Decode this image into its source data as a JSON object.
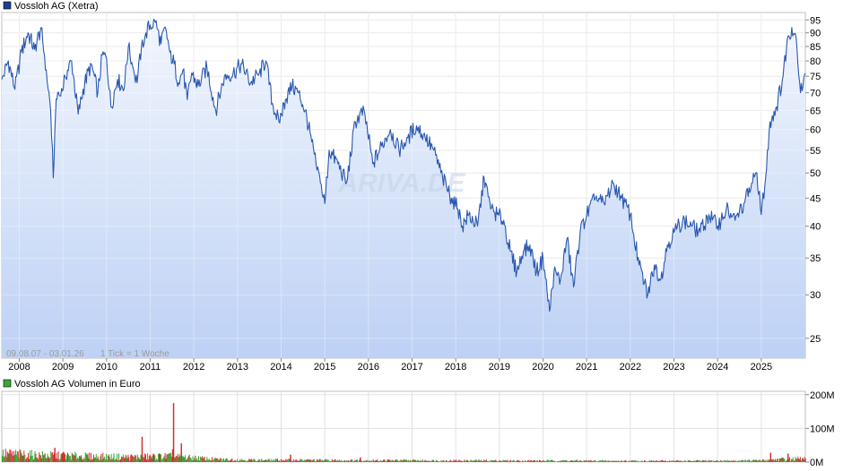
{
  "chart_data": [
    {
      "type": "area",
      "title": "Vossloh AG (Xetra)",
      "legend_color": "#1f3f8f",
      "line_color": "#2a58b0",
      "fill_top_color": "#f2f6fd",
      "fill_bottom_color": "#bdd1f5",
      "period_label": "09.08.07 - 03.01.26",
      "tick_label": "1 Tick = 1 Woche",
      "y_scale": "log",
      "ylim": [
        23,
        98
      ],
      "xlim": [
        2007.6,
        2026.01
      ],
      "grid": true,
      "x_ticks": [
        2008,
        2009,
        2010,
        2011,
        2012,
        2013,
        2014,
        2015,
        2016,
        2017,
        2018,
        2019,
        2020,
        2021,
        2022,
        2023,
        2024,
        2025
      ],
      "x_tick_labels": [
        "2008",
        "2009",
        "2010",
        "2011",
        "2012",
        "2013",
        "2014",
        "2015",
        "2016",
        "2017",
        "2018",
        "2019",
        "2020",
        "2021",
        "2022",
        "2023",
        "2024",
        "2025"
      ],
      "y_ticks": [
        25,
        30,
        35,
        40,
        45,
        50,
        55,
        60,
        65,
        70,
        75,
        80,
        85,
        90,
        95
      ],
      "y_tick_labels": [
        "25",
        "30",
        "35",
        "40",
        "45",
        "50",
        "55",
        "60",
        "65",
        "70",
        "75",
        "80",
        "85",
        "90",
        "95"
      ],
      "series": [
        {
          "name": "Vossloh AG (Xetra)",
          "x": [
            2007.6,
            2007.75,
            2007.9,
            2008.05,
            2008.2,
            2008.35,
            2008.5,
            2008.62,
            2008.72,
            2008.78,
            2008.83,
            2008.88,
            2008.95,
            2009.05,
            2009.2,
            2009.35,
            2009.5,
            2009.65,
            2009.8,
            2009.9,
            2010.0,
            2010.1,
            2010.25,
            2010.4,
            2010.5,
            2010.6,
            2010.7,
            2010.8,
            2010.9,
            2011.0,
            2011.12,
            2011.25,
            2011.35,
            2011.45,
            2011.55,
            2011.65,
            2011.75,
            2011.85,
            2011.95,
            2012.1,
            2012.3,
            2012.5,
            2012.7,
            2012.9,
            2013.1,
            2013.3,
            2013.5,
            2013.65,
            2013.8,
            2013.95,
            2014.1,
            2014.25,
            2014.4,
            2014.55,
            2014.7,
            2014.8,
            2014.9,
            2015.0,
            2015.1,
            2015.3,
            2015.5,
            2015.7,
            2015.9,
            2016.1,
            2016.3,
            2016.5,
            2016.7,
            2016.9,
            2017.1,
            2017.3,
            2017.5,
            2017.7,
            2017.9,
            2018.05,
            2018.15,
            2018.3,
            2018.5,
            2018.65,
            2018.8,
            2018.95,
            2019.1,
            2019.25,
            2019.4,
            2019.55,
            2019.7,
            2019.85,
            2020.0,
            2020.15,
            2020.25,
            2020.4,
            2020.55,
            2020.7,
            2020.85,
            2021.0,
            2021.2,
            2021.4,
            2021.6,
            2021.8,
            2022.0,
            2022.2,
            2022.4,
            2022.55,
            2022.7,
            2022.85,
            2023.0,
            2023.2,
            2023.4,
            2023.6,
            2023.8,
            2024.0,
            2024.2,
            2024.4,
            2024.6,
            2024.8,
            2024.9,
            2025.0,
            2025.1,
            2025.2,
            2025.35,
            2025.5,
            2025.6,
            2025.7,
            2025.8,
            2025.9,
            2026.01
          ],
          "values": [
            74,
            80,
            71,
            83,
            90,
            84,
            92,
            77,
            65,
            49,
            64,
            70,
            69,
            75,
            80,
            64,
            73,
            79,
            70,
            82,
            81,
            66,
            74,
            71,
            85,
            78,
            73,
            85,
            90,
            93,
            94,
            86,
            92,
            83,
            79,
            73,
            77,
            68,
            76,
            72,
            78,
            65,
            75,
            76,
            79,
            73,
            76,
            80,
            67,
            62,
            68,
            72,
            70,
            65,
            57,
            52,
            48,
            44,
            55,
            52,
            48,
            62,
            65,
            52,
            56,
            60,
            55,
            58,
            61,
            58,
            55,
            49,
            45,
            43,
            40,
            42,
            40,
            49,
            43,
            42,
            41,
            36,
            33,
            36,
            37,
            33,
            35,
            28,
            33,
            32,
            38,
            31,
            39,
            42,
            45,
            44,
            48,
            45,
            42,
            34,
            30,
            34,
            32,
            37,
            39,
            41,
            40,
            39,
            42,
            40,
            43,
            41,
            44,
            48,
            50,
            42,
            49,
            62,
            66,
            75,
            88,
            92,
            88,
            70,
            76
          ]
        }
      ]
    },
    {
      "type": "bar",
      "title": "Vossloh AG Volumen in Euro",
      "legend_color": "#38a838",
      "up_color": "#2fa82f",
      "down_color": "#d03030",
      "ylim": [
        0,
        210
      ],
      "y_unit": "M",
      "y_ticks": [
        0,
        100,
        200
      ],
      "y_tick_labels": [
        "0M",
        "100M",
        "200M"
      ],
      "grid": true,
      "x_ticks": [
        2008,
        2009,
        2010,
        2011,
        2012,
        2013,
        2014,
        2015,
        2016,
        2017,
        2018,
        2019,
        2020,
        2021,
        2022,
        2023,
        2024,
        2025
      ],
      "volume_profile": {
        "x": [
          2007.6,
          2008.5,
          2009.5,
          2010.5,
          2011.4,
          2011.8,
          2012.5,
          2013.5,
          2014.5,
          2015.5,
          2016.5,
          2017.5,
          2018.5,
          2019.5,
          2020.5,
          2021.5,
          2022.5,
          2023.5,
          2024.5,
          2025.0,
          2025.4,
          2026.01
        ],
        "typical": [
          25,
          20,
          17,
          15,
          17,
          14,
          8,
          6,
          6,
          5,
          5,
          4.5,
          4.5,
          4,
          4,
          3.5,
          3.5,
          3.5,
          4,
          5,
          8,
          10
        ]
      },
      "spikes": [
        {
          "x": 2008.8,
          "value": 42
        },
        {
          "x": 2009.0,
          "value": 30
        },
        {
          "x": 2010.8,
          "value": 75
        },
        {
          "x": 2011.5,
          "value": 38
        },
        {
          "x": 2011.52,
          "value": 175
        },
        {
          "x": 2011.7,
          "value": 55
        },
        {
          "x": 2014.2,
          "value": 22
        },
        {
          "x": 2015.8,
          "value": 14
        },
        {
          "x": 2025.2,
          "value": 28
        },
        {
          "x": 2025.6,
          "value": 25
        }
      ]
    }
  ]
}
